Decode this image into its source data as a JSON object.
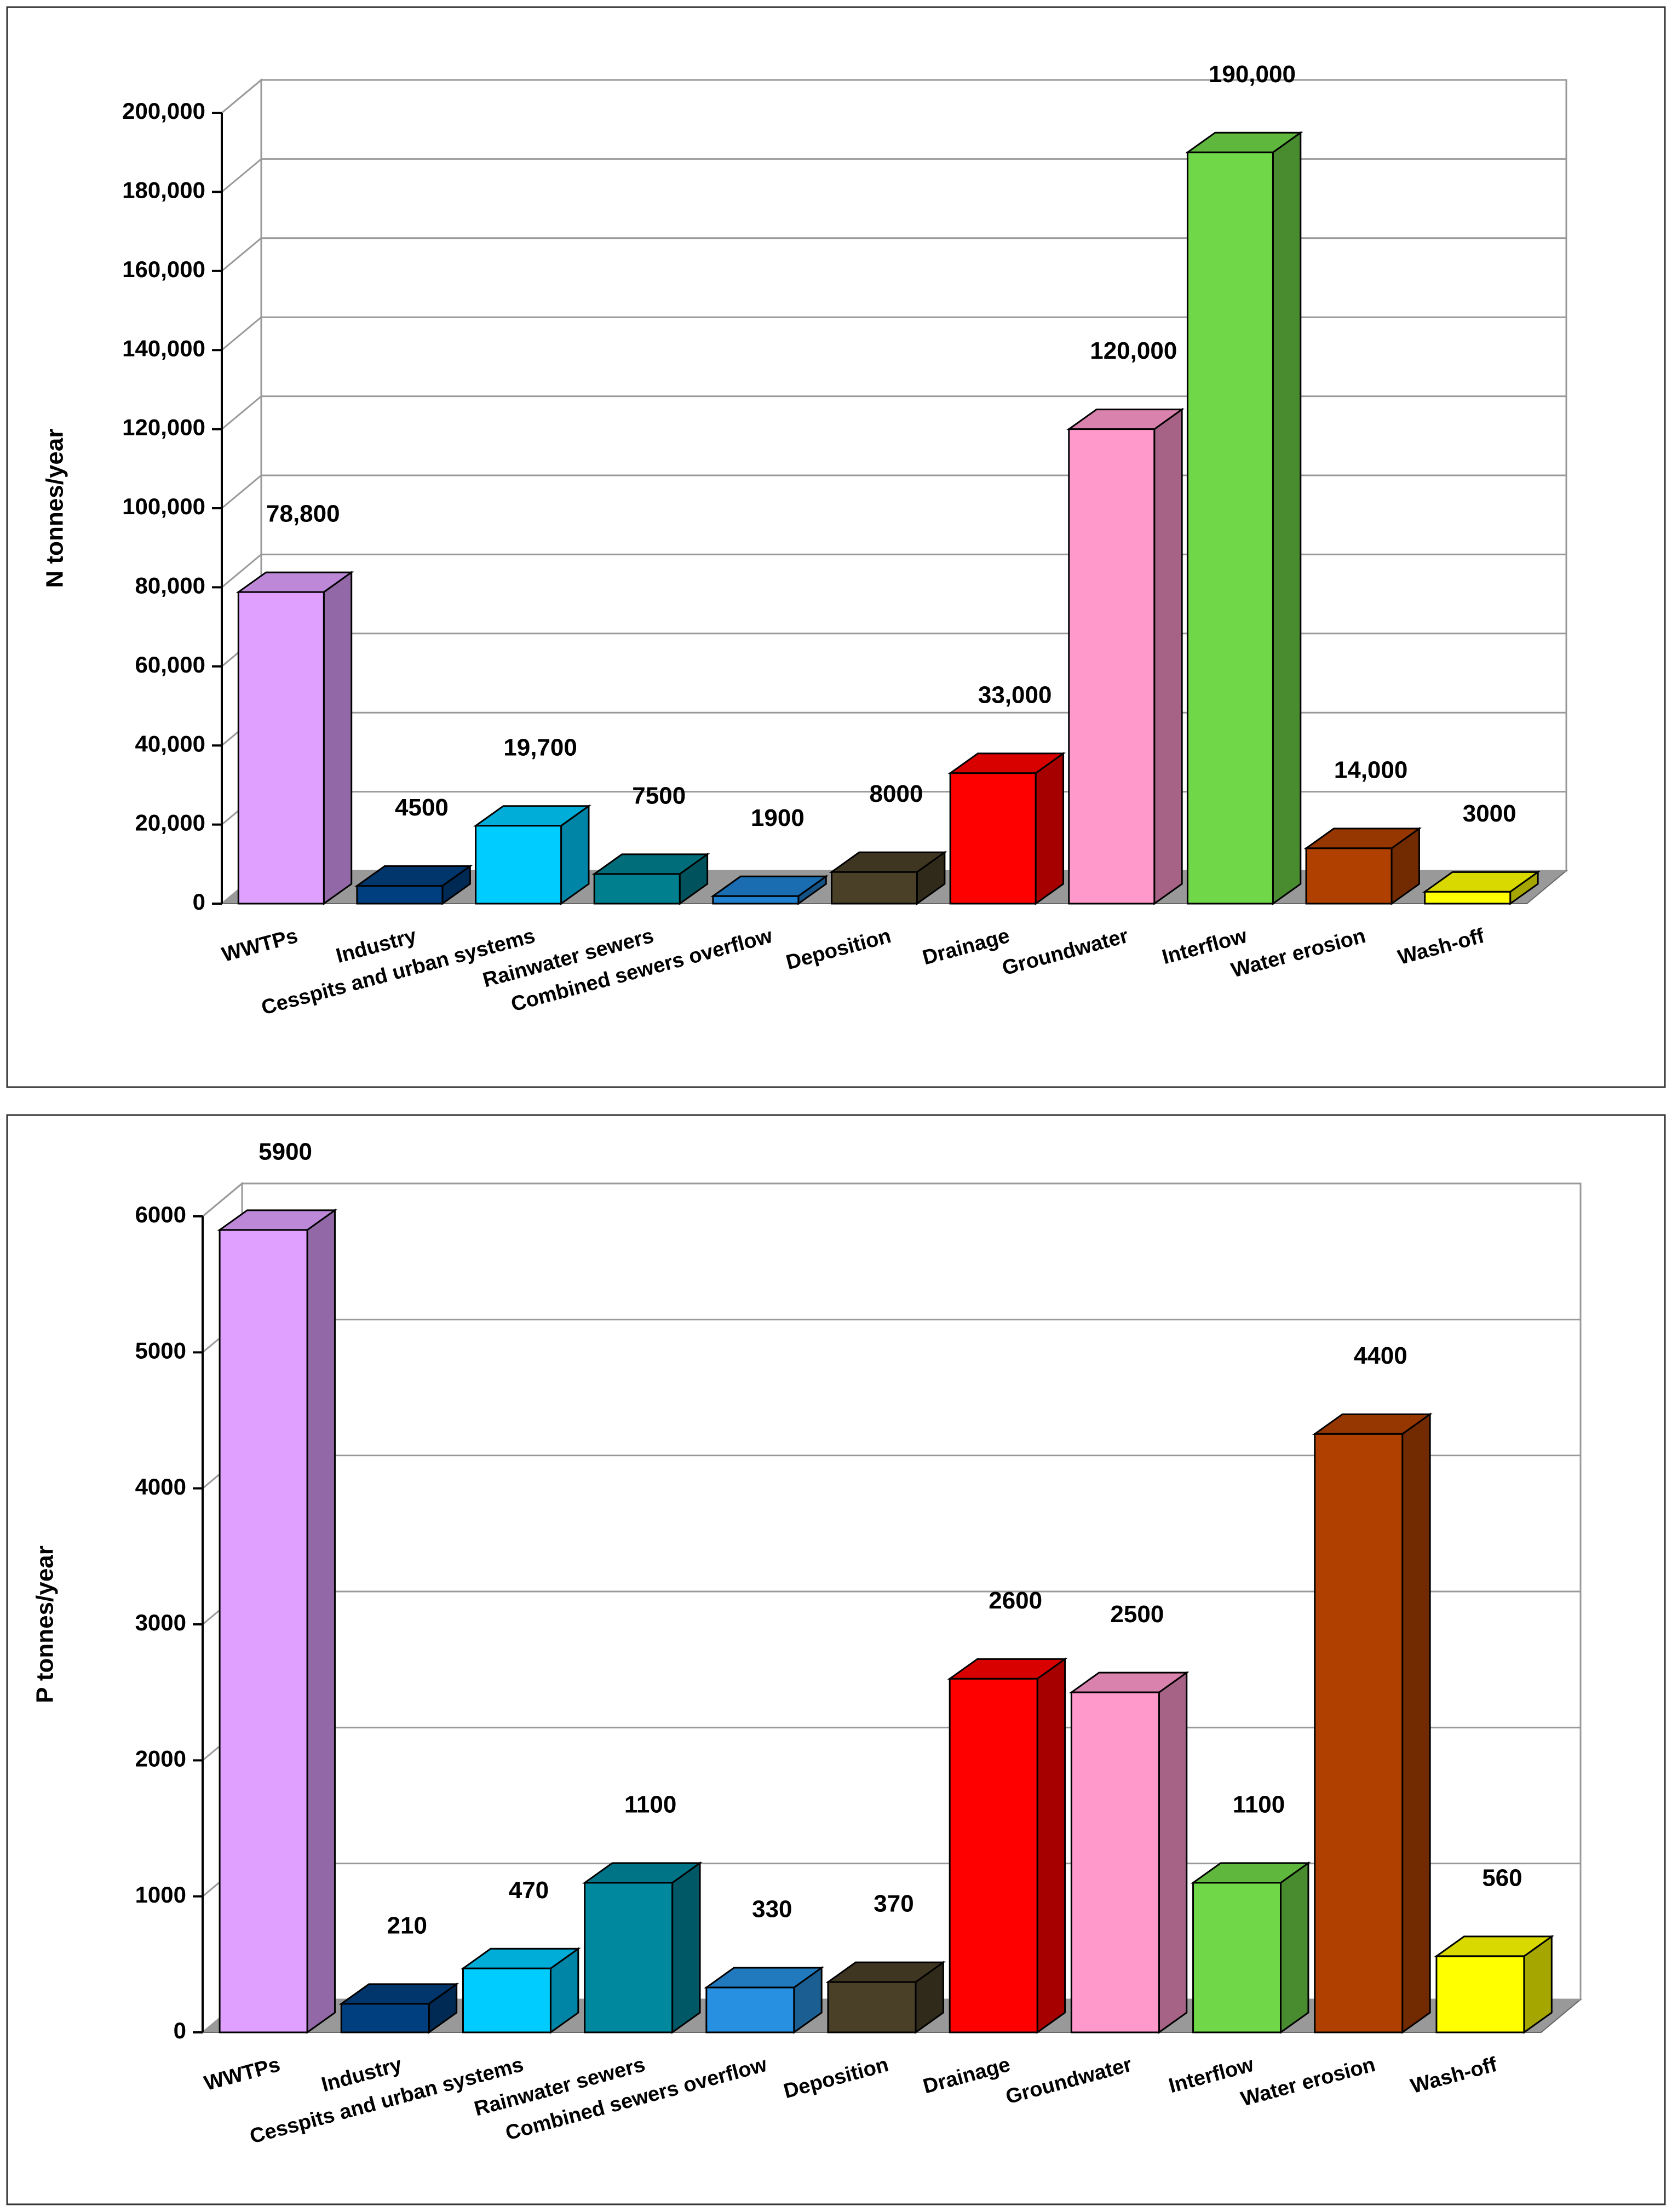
{
  "chart_data": [
    {
      "type": "bar3d",
      "ylabel": "N tonnes/year",
      "categories": [
        "WWTPs",
        "Industry",
        "Cesspits and urban systems",
        "Rainwater sewers",
        "Combined sewers overflow",
        "Deposition",
        "Drainage",
        "Groundwater",
        "Interflow",
        "Water erosion",
        "Wash-off"
      ],
      "values": [
        78800,
        4500,
        19700,
        7500,
        1900,
        8000,
        33000,
        120000,
        190000,
        14000,
        3000
      ],
      "value_labels": [
        "78,800",
        "4500",
        "19,700",
        "7500",
        "1900",
        "8000",
        "33,000",
        "120,000",
        "190,000",
        "14,000",
        "3000"
      ],
      "colors": [
        "#e0a0ff",
        "#003f7f",
        "#00ccff",
        "#00808f",
        "#2080d0",
        "#4a4028",
        "#ff0000",
        "#ff99cc",
        "#70d848",
        "#b04000",
        "#ffff00"
      ],
      "ylim": [
        0,
        200000
      ],
      "yticks": [
        0,
        {
          "value": 20000,
          "label": "20,000"
        },
        {
          "value": 40000,
          "label": "40,000"
        },
        {
          "value": 60000,
          "label": "60,000"
        },
        {
          "value": 80000,
          "label": "80,000"
        },
        {
          "value": 100000,
          "label": "100,000"
        },
        {
          "value": 120000,
          "label": "120,000"
        },
        {
          "value": 140000,
          "label": "140,000"
        },
        {
          "value": 160000,
          "label": "160,000"
        },
        {
          "value": 180000,
          "label": "180,000"
        },
        {
          "value": 200000,
          "label": "200,000"
        }
      ],
      "grid": true
    },
    {
      "type": "bar3d",
      "ylabel": "P tonnes/year",
      "categories": [
        "WWTPs",
        "Industry",
        "Cesspits and urban systems",
        "Rainwater sewers",
        "Combined sewers overflow",
        "Deposition",
        "Drainage",
        "Groundwater",
        "Interflow",
        "Water erosion",
        "Wash-off"
      ],
      "values": [
        5900,
        210,
        470,
        1100,
        330,
        370,
        2600,
        2500,
        1100,
        4400,
        560
      ],
      "colors": [
        "#e0a0ff",
        "#003f7f",
        "#00ccff",
        "#00889f",
        "#2890e0",
        "#4a4028",
        "#ff0000",
        "#ff99cc",
        "#70d848",
        "#b04000",
        "#ffff00"
      ],
      "ylim": [
        0,
        6000
      ],
      "yticks": [
        0,
        1000,
        2000,
        3000,
        4000,
        5000,
        6000
      ],
      "grid": true
    }
  ]
}
